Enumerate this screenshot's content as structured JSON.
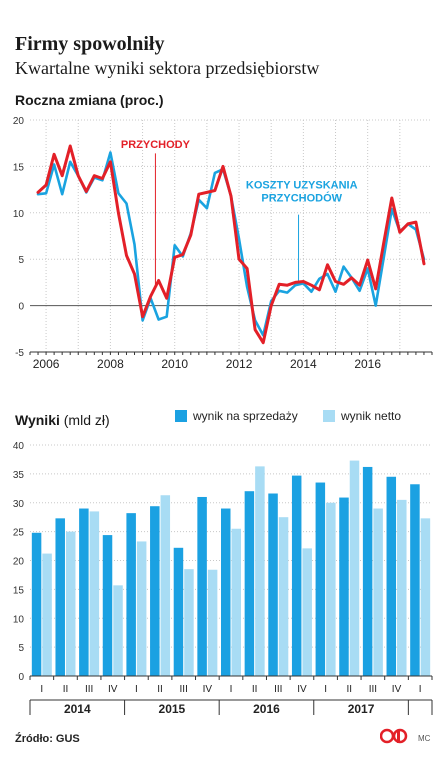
{
  "header": {
    "title": "Firmy spowolniły",
    "subtitle": "Kwartalne wyniki sektora przedsiębiorstw"
  },
  "chart_data": [
    {
      "type": "line",
      "title": "Roczna zmiana (proc.)",
      "ylim": [
        -5,
        20
      ],
      "y_ticks": [
        "20",
        "15",
        "10",
        "5",
        "0",
        "-5"
      ],
      "x_ticks": [
        "2006",
        "2008",
        "2010",
        "2012",
        "2014",
        "2016"
      ],
      "grid": true,
      "annotations": [
        "PRZYCHODY",
        "KOSZTY UZYSKANIA PRZYCHODÓW"
      ],
      "series": [
        {
          "name": "PRZYCHODY",
          "color": "#e32028",
          "x": [
            2005.75,
            2006.0,
            2006.25,
            2006.5,
            2006.75,
            2007.0,
            2007.25,
            2007.5,
            2007.75,
            2008.0,
            2008.25,
            2008.5,
            2008.75,
            2009.0,
            2009.25,
            2009.5,
            2009.75,
            2010.0,
            2010.25,
            2010.5,
            2010.75,
            2011.0,
            2011.25,
            2011.5,
            2011.75,
            2012.0,
            2012.25,
            2012.5,
            2012.75,
            2013.0,
            2013.25,
            2013.5,
            2013.75,
            2014.0,
            2014.25,
            2014.5,
            2014.75,
            2015.0,
            2015.25,
            2015.5,
            2015.75,
            2016.0,
            2016.25,
            2016.5,
            2016.75,
            2017.0,
            2017.25,
            2017.5,
            2017.75
          ],
          "y": [
            12.2,
            13.0,
            16.3,
            14.0,
            17.2,
            14.0,
            12.3,
            14.0,
            13.7,
            15.5,
            10.0,
            5.4,
            3.4,
            -1.2,
            1.0,
            2.7,
            0.8,
            5.2,
            5.5,
            7.6,
            12.0,
            12.2,
            12.4,
            15.0,
            11.8,
            5.0,
            4.0,
            -2.6,
            -4.0,
            0.0,
            2.3,
            2.2,
            2.5,
            2.6,
            2.2,
            1.7,
            4.4,
            2.6,
            2.3,
            3.0,
            2.2,
            4.9,
            1.8,
            6.8,
            11.6,
            7.9,
            8.8,
            9.0,
            4.5
          ]
        },
        {
          "name": "KOSZTY UZYSKANIA PRZYCHODÓW",
          "color": "#1aa3e0",
          "x": [
            2005.75,
            2006.0,
            2006.25,
            2006.5,
            2006.75,
            2007.0,
            2007.25,
            2007.5,
            2007.75,
            2008.0,
            2008.25,
            2008.5,
            2008.75,
            2009.0,
            2009.25,
            2009.5,
            2009.75,
            2010.0,
            2010.25,
            2010.5,
            2010.75,
            2011.0,
            2011.25,
            2011.5,
            2011.75,
            2012.0,
            2012.25,
            2012.5,
            2012.75,
            2013.0,
            2013.25,
            2013.5,
            2013.75,
            2014.0,
            2014.25,
            2014.5,
            2014.75,
            2015.0,
            2015.25,
            2015.5,
            2015.75,
            2016.0,
            2016.25,
            2016.5,
            2016.75,
            2017.0,
            2017.25,
            2017.5,
            2017.75
          ],
          "y": [
            12.0,
            12.1,
            15.2,
            12.0,
            15.5,
            14.0,
            12.2,
            13.8,
            13.5,
            16.5,
            12.1,
            11.0,
            6.6,
            -1.6,
            0.8,
            -1.5,
            -1.2,
            6.5,
            5.3,
            7.8,
            11.4,
            10.5,
            14.3,
            14.7,
            11.8,
            7.2,
            2.0,
            -1.6,
            -3.2,
            0.5,
            1.6,
            1.4,
            2.2,
            2.4,
            1.5,
            2.9,
            3.4,
            1.5,
            4.2,
            3.0,
            1.6,
            4.0,
            0.0,
            5.2,
            10.4,
            8.0,
            8.8,
            8.2,
            5.0
          ]
        }
      ]
    },
    {
      "type": "bar",
      "title": "Wyniki",
      "unit": "(mld zł)",
      "ylim": [
        0,
        40
      ],
      "y_ticks": [
        "40",
        "35",
        "30",
        "25",
        "20",
        "15",
        "10",
        "5",
        "0"
      ],
      "grid": true,
      "legend_position": "top-right",
      "categories": [
        "I",
        "II",
        "III",
        "IV",
        "I",
        "II",
        "III",
        "IV",
        "I",
        "II",
        "III",
        "IV",
        "I",
        "II",
        "III",
        "IV",
        "I"
      ],
      "groups": [
        "2014",
        "2015",
        "2016",
        "2017"
      ],
      "series": [
        {
          "name": "wynik na sprzedaży",
          "color": "#1ba1e2",
          "values": [
            24.8,
            27.3,
            29.0,
            24.4,
            28.2,
            29.4,
            22.2,
            31.0,
            29.0,
            32.0,
            31.6,
            34.7,
            33.5,
            30.9,
            36.2,
            34.5,
            33.2
          ]
        },
        {
          "name": "wynik netto",
          "color": "#a8dcf4",
          "values": [
            21.2,
            25.0,
            28.5,
            15.7,
            23.3,
            31.3,
            18.5,
            18.4,
            25.5,
            36.3,
            27.5,
            22.1,
            30.0,
            37.3,
            29.0,
            30.5,
            27.3
          ]
        }
      ]
    }
  ],
  "labels": {
    "line_title": "Roczna zmiana (proc.)",
    "bar_title": "Wyniki",
    "bar_unit": "(mld zł)",
    "revenue_label": "PRZYCHODY",
    "costs_label_1": "KOSZTY UZYSKANIA",
    "costs_label_2": "PRZYCHODÓW"
  },
  "footer": {
    "source": "Źródło: GUS",
    "author": "MC"
  },
  "colors": {
    "red": "#e32028",
    "blue": "#1ba1e2",
    "light_blue": "#a8dcf4",
    "grid": "#c8c8c8"
  },
  "icons": {
    "logo": "dziennik-gazeta-prawna-logo"
  }
}
